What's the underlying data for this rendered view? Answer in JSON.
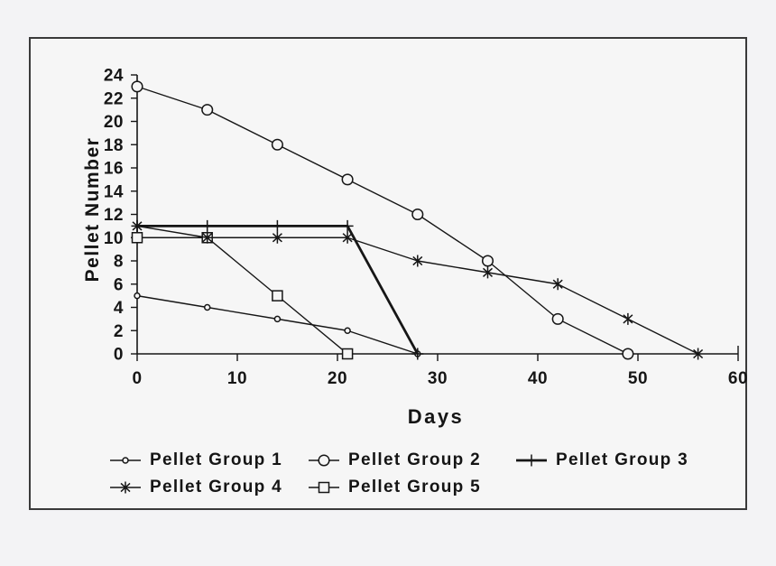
{
  "background": {
    "page": "#f3f3f5",
    "plot": "#f6f6f6"
  },
  "ink_color": "#161616",
  "chart_data": {
    "type": "line",
    "title": "",
    "xlabel": "Days",
    "ylabel": "Pellet Number",
    "xlim": [
      0,
      60
    ],
    "ylim": [
      0,
      24
    ],
    "xticks": [
      0,
      10,
      20,
      30,
      40,
      50,
      60
    ],
    "yticks": [
      0,
      2,
      4,
      6,
      8,
      10,
      12,
      14,
      16,
      18,
      20,
      22,
      24
    ],
    "grid": false,
    "legend_position": "bottom",
    "series": [
      {
        "name": "Pellet Group 1",
        "marker": "circle-small",
        "line_weight": "thin",
        "x": [
          0,
          7,
          14,
          21,
          28
        ],
        "y": [
          5,
          4,
          3,
          2,
          0
        ]
      },
      {
        "name": "Pellet Group 2",
        "marker": "circle-large",
        "line_weight": "thin",
        "x": [
          0,
          7,
          14,
          21,
          28,
          35,
          42,
          49
        ],
        "y": [
          23,
          21,
          18,
          15,
          12,
          8,
          3,
          0
        ]
      },
      {
        "name": "Pellet Group 3",
        "marker": "plus",
        "line_weight": "thick",
        "x": [
          0,
          7,
          14,
          21,
          28
        ],
        "y": [
          11,
          11,
          11,
          11,
          0
        ]
      },
      {
        "name": "Pellet Group 4",
        "marker": "asterisk",
        "line_weight": "thin",
        "x": [
          0,
          7,
          14,
          21,
          28,
          35,
          42,
          49,
          56
        ],
        "y": [
          11,
          10,
          10,
          10,
          8,
          7,
          6,
          3,
          0
        ]
      },
      {
        "name": "Pellet Group 5",
        "marker": "square",
        "line_weight": "thin",
        "x": [
          0,
          7,
          14,
          21
        ],
        "y": [
          10,
          10,
          5,
          0
        ]
      }
    ]
  }
}
